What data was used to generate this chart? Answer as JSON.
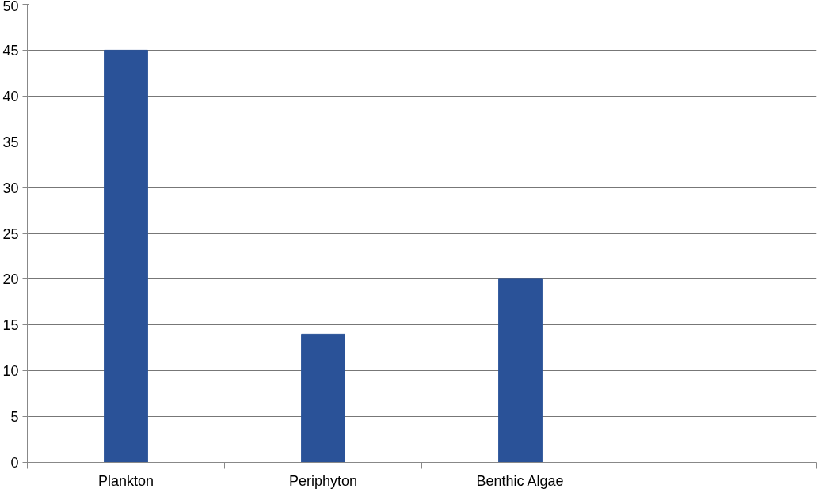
{
  "chart_data": {
    "type": "bar",
    "categories": [
      "Plankton",
      "Periphyton",
      "Benthic Algae",
      null
    ],
    "values": [
      45,
      14,
      20,
      null
    ],
    "color": "#2a5298",
    "ylim": [
      0,
      50
    ],
    "yticks": [
      0,
      5,
      10,
      15,
      20,
      25,
      30,
      35,
      40,
      45,
      50
    ],
    "grid": "y"
  }
}
